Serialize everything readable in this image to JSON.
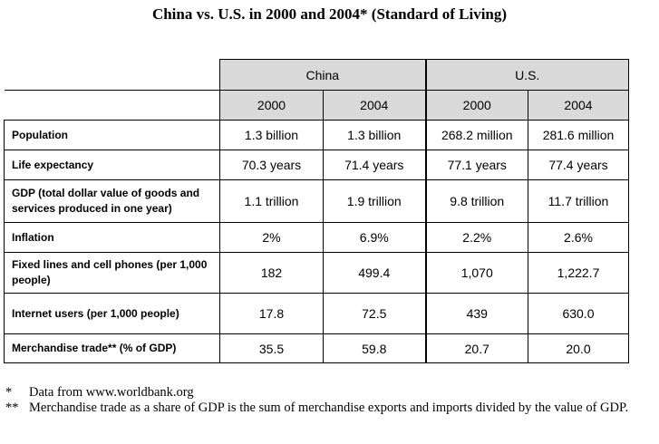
{
  "title": "China vs. U.S. in 2000 and 2004* (Standard of Living)",
  "table": {
    "groups": [
      {
        "label": "China",
        "years": [
          "2000",
          "2004"
        ]
      },
      {
        "label": "U.S.",
        "years": [
          "2000",
          "2004"
        ]
      }
    ],
    "rows": [
      {
        "label": "Population",
        "values": [
          "1.3 billion",
          "1.3 billion",
          "268.2 million",
          "281.6 million"
        ]
      },
      {
        "label": "Life expectancy",
        "values": [
          "70.3 years",
          "71.4 years",
          "77.1 years",
          "77.4 years"
        ]
      },
      {
        "label": "GDP (total dollar value of goods and services produced in one year)",
        "values": [
          "1.1 trillion",
          "1.9 trillion",
          "9.8 trillion",
          "11.7 trillion"
        ]
      },
      {
        "label": "Inflation",
        "values": [
          "2%",
          "6.9%",
          "2.2%",
          "2.6%"
        ]
      },
      {
        "label": "Fixed lines and cell phones (per 1,000 people)",
        "values": [
          "182",
          "499.4",
          "1,070",
          "1,222.7"
        ]
      },
      {
        "label": "Internet users (per 1,000 people)",
        "values": [
          "17.8",
          "72.5",
          "439",
          "630.0"
        ]
      },
      {
        "label": "Merchandise trade** (% of GDP)",
        "values": [
          "35.5",
          "59.8",
          "20.7",
          "20.0"
        ]
      }
    ]
  },
  "footnotes": [
    {
      "mark": "*",
      "text": "Data from www.worldbank.org"
    },
    {
      "mark": "**",
      "text": "Merchandise trade as a share of GDP is the sum of merchandise exports and imports divided by the value of GDP."
    }
  ]
}
